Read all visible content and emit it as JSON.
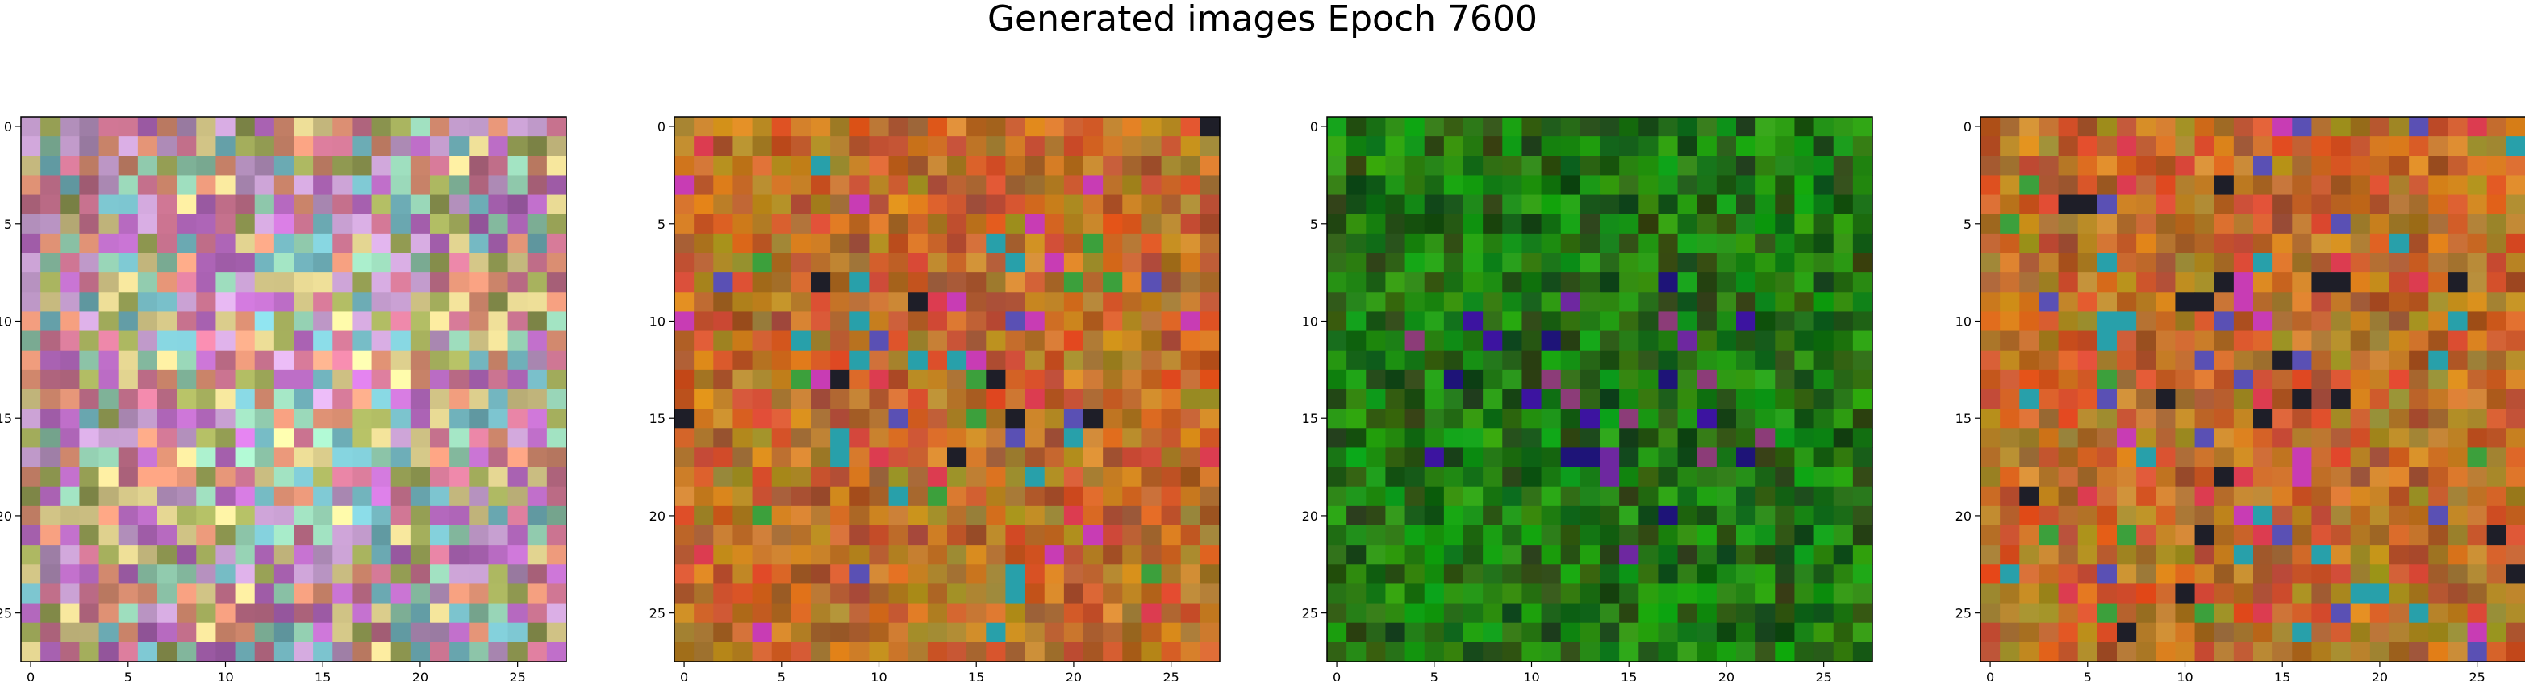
{
  "figure": {
    "title": "Generated images Epoch 7600"
  },
  "chart_data": [
    {
      "type": "heatmap",
      "name": "image-1",
      "palette": "pastel-multicolor",
      "size": 28,
      "xlim": [
        -0.5,
        27.5
      ],
      "ylim": [
        27.5,
        -0.5
      ],
      "xticks": [
        0,
        5,
        10,
        15,
        20,
        25
      ],
      "yticks": [
        0,
        5,
        10,
        15,
        20,
        25
      ],
      "xtick_labels": [
        "0",
        "5",
        "10",
        "15",
        "20",
        "25"
      ],
      "ytick_labels": [
        "0",
        "5",
        "10",
        "15",
        "20",
        "25"
      ],
      "grid": false
    },
    {
      "type": "heatmap",
      "name": "image-2",
      "palette": "warm-orange-multicolor",
      "size": 28,
      "xlim": [
        -0.5,
        27.5
      ],
      "ylim": [
        27.5,
        -0.5
      ],
      "xticks": [
        0,
        5,
        10,
        15,
        20,
        25
      ],
      "yticks": [
        0,
        5,
        10,
        15,
        20,
        25
      ],
      "xtick_labels": [
        "0",
        "5",
        "10",
        "15",
        "20",
        "25"
      ],
      "ytick_labels": [
        "0",
        "5",
        "10",
        "15",
        "20",
        "25"
      ],
      "grid": false
    },
    {
      "type": "heatmap",
      "name": "image-3",
      "palette": "dark-green-purple",
      "size": 28,
      "xlim": [
        -0.5,
        27.5
      ],
      "ylim": [
        27.5,
        -0.5
      ],
      "xticks": [
        0,
        5,
        10,
        15,
        20,
        25
      ],
      "yticks": [
        0,
        5,
        10,
        15,
        20,
        25
      ],
      "xtick_labels": [
        "0",
        "5",
        "10",
        "15",
        "20",
        "25"
      ],
      "ytick_labels": [
        "0",
        "5",
        "10",
        "15",
        "20",
        "25"
      ],
      "grid": false
    },
    {
      "type": "heatmap",
      "name": "image-4",
      "palette": "warm-orange-multicolor",
      "size": 28,
      "xlim": [
        -0.5,
        27.5
      ],
      "ylim": [
        27.5,
        -0.5
      ],
      "xticks": [
        0,
        5,
        10,
        15,
        20,
        25
      ],
      "yticks": [
        0,
        5,
        10,
        15,
        20,
        25
      ],
      "xtick_labels": [
        "0",
        "5",
        "10",
        "15",
        "20",
        "25"
      ],
      "ytick_labels": [
        "0",
        "5",
        "10",
        "15",
        "20",
        "25"
      ],
      "grid": false
    }
  ]
}
